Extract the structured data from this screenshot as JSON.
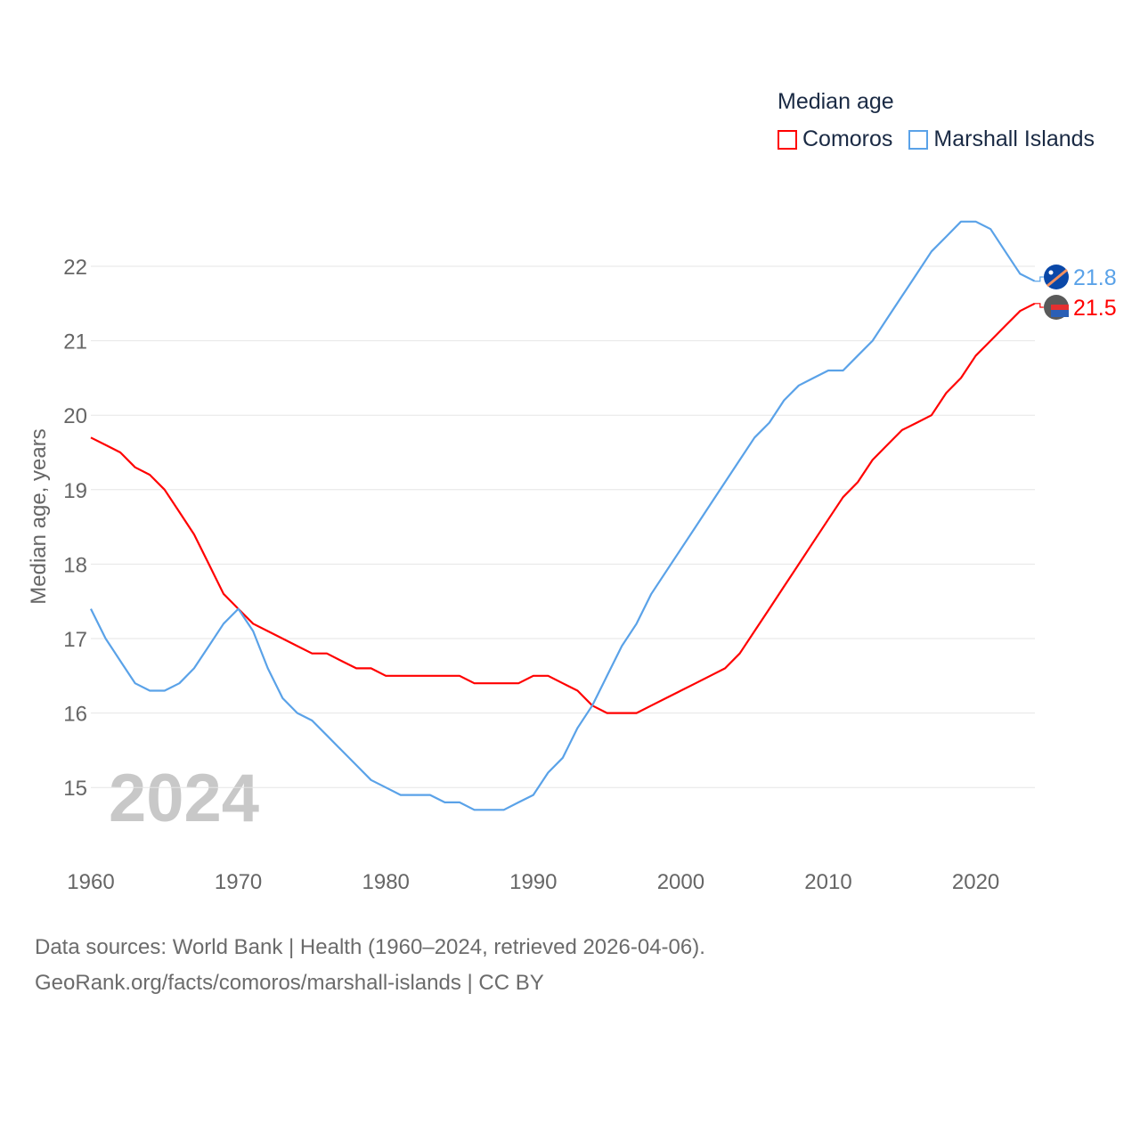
{
  "chart_data": {
    "type": "line",
    "title": "Median age",
    "ylabel": "Median age, years",
    "xlabel": "",
    "ylim": [
      14,
      23
    ],
    "xlim": [
      1960,
      2024
    ],
    "grid": true,
    "legend_placement": "top-right",
    "year_watermark": "2024",
    "x_ticks": [
      "1960",
      "1970",
      "1980",
      "1990",
      "2000",
      "2010",
      "2020"
    ],
    "y_ticks": [
      "15",
      "16",
      "17",
      "18",
      "19",
      "20",
      "21",
      "22"
    ],
    "x": [
      1960,
      1961,
      1962,
      1963,
      1964,
      1965,
      1966,
      1967,
      1968,
      1969,
      1970,
      1971,
      1972,
      1973,
      1974,
      1975,
      1976,
      1977,
      1978,
      1979,
      1980,
      1981,
      1982,
      1983,
      1984,
      1985,
      1986,
      1987,
      1988,
      1989,
      1990,
      1991,
      1992,
      1993,
      1994,
      1995,
      1996,
      1997,
      1998,
      1999,
      2000,
      2001,
      2002,
      2003,
      2004,
      2005,
      2006,
      2007,
      2008,
      2009,
      2010,
      2011,
      2012,
      2013,
      2014,
      2015,
      2016,
      2017,
      2018,
      2019,
      2020,
      2021,
      2022,
      2023,
      2024
    ],
    "series": [
      {
        "name": "Comoros",
        "color": "#ff0000",
        "end_label": "21.5",
        "values": [
          19.7,
          19.6,
          19.5,
          19.3,
          19.2,
          19.0,
          18.7,
          18.4,
          18.0,
          17.6,
          17.4,
          17.2,
          17.1,
          17.0,
          16.9,
          16.8,
          16.8,
          16.7,
          16.6,
          16.6,
          16.5,
          16.5,
          16.5,
          16.5,
          16.5,
          16.5,
          16.4,
          16.4,
          16.4,
          16.4,
          16.5,
          16.5,
          16.4,
          16.3,
          16.1,
          16.0,
          16.0,
          16.0,
          16.1,
          16.2,
          16.3,
          16.4,
          16.5,
          16.6,
          16.8,
          17.1,
          17.4,
          17.7,
          18.0,
          18.3,
          18.6,
          18.9,
          19.1,
          19.4,
          19.6,
          19.8,
          19.9,
          20.0,
          20.3,
          20.5,
          20.8,
          21.0,
          21.2,
          21.4,
          21.5
        ]
      },
      {
        "name": "Marshall Islands",
        "color": "#5aa2e8",
        "end_label": "21.8",
        "values": [
          17.4,
          17.0,
          16.7,
          16.4,
          16.3,
          16.3,
          16.4,
          16.6,
          16.9,
          17.2,
          17.4,
          17.1,
          16.6,
          16.2,
          16.0,
          15.9,
          15.7,
          15.5,
          15.3,
          15.1,
          15.0,
          14.9,
          14.9,
          14.9,
          14.8,
          14.8,
          14.7,
          14.7,
          14.7,
          14.8,
          14.9,
          15.2,
          15.4,
          15.8,
          16.1,
          16.5,
          16.9,
          17.2,
          17.6,
          17.9,
          18.2,
          18.5,
          18.8,
          19.1,
          19.4,
          19.7,
          19.9,
          20.2,
          20.4,
          20.5,
          20.6,
          20.6,
          20.8,
          21.0,
          21.3,
          21.6,
          21.9,
          22.2,
          22.4,
          22.6,
          22.6,
          22.5,
          22.2,
          21.9,
          21.8
        ]
      }
    ]
  },
  "source": {
    "line1": "Data sources: World Bank | Health (1960–2024, retrieved 2026-04-06).",
    "line2": "GeoRank.org/facts/comoros/marshall-islands | CC BY"
  }
}
